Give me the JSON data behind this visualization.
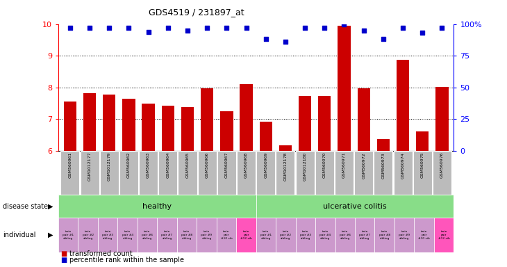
{
  "title": "GDS4519 / 231897_at",
  "samples": [
    "GSM560961",
    "GSM1012177",
    "GSM1012179",
    "GSM560962",
    "GSM560963",
    "GSM560964",
    "GSM560965",
    "GSM560966",
    "GSM560967",
    "GSM560968",
    "GSM560969",
    "GSM1012178",
    "GSM1012180",
    "GSM560970",
    "GSM560971",
    "GSM560972",
    "GSM560973",
    "GSM560974",
    "GSM560975",
    "GSM560976"
  ],
  "bar_values": [
    7.55,
    7.83,
    7.78,
    7.65,
    7.49,
    7.42,
    7.38,
    7.97,
    7.25,
    8.1,
    6.92,
    6.17,
    7.73,
    7.73,
    9.95,
    7.98,
    6.38,
    8.88,
    6.62,
    8.02
  ],
  "percentile_values": [
    97,
    97,
    97,
    97,
    94,
    97,
    95,
    97,
    97,
    97,
    88,
    86,
    97,
    97,
    100,
    95,
    88,
    97,
    93,
    97
  ],
  "ylim_left": [
    6,
    10
  ],
  "ylim_right": [
    0,
    100
  ],
  "yticks_left": [
    6,
    7,
    8,
    9,
    10
  ],
  "yticks_right": [
    0,
    25,
    50,
    75,
    100
  ],
  "bar_color": "#cc0000",
  "dot_color": "#0000cc",
  "grid_lines": [
    7,
    8,
    9
  ],
  "individual_labels": [
    "twin\npair #1\nsibling",
    "twin\npair #2\nsibling",
    "twin\npair #3\nsibling",
    "twin\npair #4\nsibling",
    "twin\npair #6\nsibling",
    "twin\npair #7\nsibling",
    "twin\npair #8\nsibling",
    "twin\npair #9\nsibling",
    "twin\npair\n#10 sib",
    "twin\npair\n#12 sib",
    "twin\npair #1\nsibling",
    "twin\npair #2\nsibling",
    "twin\npair #3\nsibling",
    "twin\npair #4\nsibling",
    "twin\npair #6\nsibling",
    "twin\npair #7\nsibling",
    "twin\npair #8\nsibling",
    "twin\npair #9\nsibling",
    "twin\npair\n#10 sib",
    "twin\npair\n#12 sib"
  ],
  "individual_colors": [
    "#cc99cc",
    "#cc99cc",
    "#cc99cc",
    "#cc99cc",
    "#cc99cc",
    "#cc99cc",
    "#cc99cc",
    "#cc99cc",
    "#cc99cc",
    "#ff55bb",
    "#cc99cc",
    "#cc99cc",
    "#cc99cc",
    "#cc99cc",
    "#cc99cc",
    "#cc99cc",
    "#cc99cc",
    "#cc99cc",
    "#cc99cc",
    "#ff55bb"
  ],
  "healthy_color": "#88dd88",
  "uc_color": "#88dd88",
  "legend_bar_label": "transformed count",
  "legend_dot_label": "percentile rank within the sample",
  "background_color": "#ffffff",
  "tick_label_bg": "#bbbbbb"
}
